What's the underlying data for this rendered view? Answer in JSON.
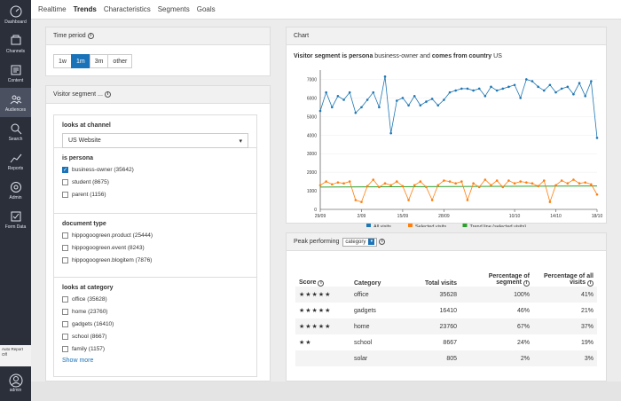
{
  "sidebar": {
    "items": [
      {
        "label": "Dashboard",
        "icon": "dashboard-icon"
      },
      {
        "label": "Channels",
        "icon": "channels-icon"
      },
      {
        "label": "Content",
        "icon": "content-icon"
      },
      {
        "label": "Audiences",
        "icon": "audiences-icon"
      },
      {
        "label": "Search",
        "icon": "search-icon"
      },
      {
        "label": "Reports",
        "icon": "reports-icon"
      },
      {
        "label": "Admin",
        "icon": "admin-icon"
      },
      {
        "label": "Form Data",
        "icon": "form-data-icon"
      }
    ],
    "auto_report": "Auto Report Off",
    "user": "admin"
  },
  "tabs": [
    "Realtime",
    "Trends",
    "Characteristics",
    "Segments",
    "Goals"
  ],
  "time_period": {
    "title": "Time period",
    "options": [
      "1w",
      "1m",
      "3m",
      "other"
    ],
    "selected": "1m"
  },
  "segment": {
    "title": "Visitor segment ...",
    "channel": {
      "title": "looks at channel",
      "value": "US Website"
    },
    "persona": {
      "title": "is persona",
      "options": [
        {
          "label": "business-owner (35642)",
          "checked": true
        },
        {
          "label": "student (8675)",
          "checked": false
        },
        {
          "label": "parent (1156)",
          "checked": false
        }
      ]
    },
    "doctype": {
      "title": "document type",
      "options": [
        {
          "label": "hippogoogreen.product (25444)",
          "checked": false
        },
        {
          "label": "hippogoogreen.event (8243)",
          "checked": false
        },
        {
          "label": "hippogoogreen.blogitem (7876)",
          "checked": false
        }
      ]
    },
    "category": {
      "title": "looks at category",
      "options": [
        {
          "label": "office (35628)",
          "checked": false
        },
        {
          "label": "home (23760)",
          "checked": false
        },
        {
          "label": "gadgets (16410)",
          "checked": false
        },
        {
          "label": "school (8667)",
          "checked": false
        },
        {
          "label": "family (1157)",
          "checked": false
        }
      ],
      "show_more": "Show more"
    }
  },
  "chart_panel": {
    "title": "Chart",
    "subtitle_parts": [
      "Visitor segment is ",
      "persona",
      " business-owner and ",
      "comes from country",
      " US"
    ]
  },
  "chart_data": {
    "type": "line",
    "ylim": [
      0,
      7500
    ],
    "yticks": [
      0,
      1000,
      2000,
      3000,
      4000,
      5000,
      6000,
      7000
    ],
    "xticks": [
      {
        "label": "29/09",
        "i": 0
      },
      {
        "label": "2/09",
        "i": 7
      },
      {
        "label": "15/09",
        "i": 14
      },
      {
        "label": "28/09",
        "i": 21
      },
      {
        "label": "10/10",
        "i": 33
      },
      {
        "label": "14/10",
        "i": 40
      },
      {
        "label": "18/10",
        "i": 47
      }
    ],
    "series": [
      {
        "name": "All visits",
        "color": "#1f77b4",
        "values": [
          5300,
          6300,
          5500,
          6100,
          5900,
          6300,
          5200,
          5500,
          5900,
          6300,
          5500,
          7150,
          4100,
          5850,
          6000,
          5600,
          6100,
          5600,
          5800,
          5950,
          5600,
          5900,
          6300,
          6400,
          6500,
          6500,
          6400,
          6500,
          6100,
          6600,
          6400,
          6500,
          6600,
          6700,
          6000,
          7000,
          6900,
          6600,
          6400,
          6700,
          6300,
          6500,
          6600,
          6200,
          6800,
          6100,
          6900,
          3850
        ]
      },
      {
        "name": "Selected visits",
        "color": "#ff7f0e",
        "values": [
          1300,
          1500,
          1350,
          1450,
          1400,
          1500,
          500,
          400,
          1250,
          1600,
          1200,
          1400,
          1300,
          1500,
          1250,
          500,
          1300,
          1500,
          1200,
          500,
          1300,
          1550,
          1500,
          1400,
          1500,
          500,
          1400,
          1200,
          1600,
          1300,
          1550,
          1200,
          1550,
          1400,
          1500,
          1450,
          1400,
          1250,
          1550,
          400,
          1300,
          1550,
          1400,
          1600,
          1400,
          1450,
          1350,
          800
        ]
      },
      {
        "name": "Trend line (selected visits)",
        "color": "#2ca02c",
        "trend": [
          1200,
          1260
        ]
      }
    ]
  },
  "peak": {
    "title": "Peak performing",
    "dropdown": "category",
    "columns": [
      "Score",
      "Category",
      "Total visits",
      "Percentage of segment",
      "Percentage of all visits"
    ],
    "rows": [
      {
        "stars": "★★★★★",
        "category": "office",
        "total": "35628",
        "seg": "100%",
        "all": "41%"
      },
      {
        "stars": "★★★★★",
        "category": "gadgets",
        "total": "16410",
        "seg": "46%",
        "all": "21%"
      },
      {
        "stars": "★★★★★",
        "category": "home",
        "total": "23760",
        "seg": "67%",
        "all": "37%"
      },
      {
        "stars": "★★",
        "category": "school",
        "total": "8667",
        "seg": "24%",
        "all": "19%"
      },
      {
        "stars": "",
        "category": "solar",
        "total": "805",
        "seg": "2%",
        "all": "3%"
      }
    ]
  }
}
